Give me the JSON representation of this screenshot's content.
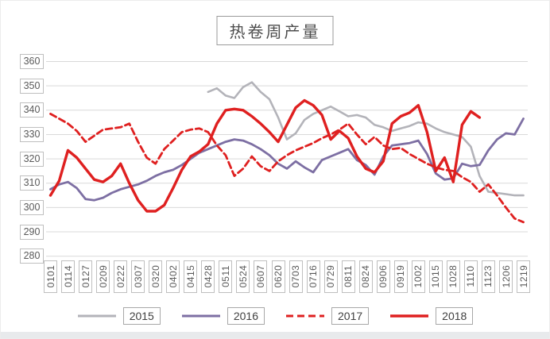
{
  "chart_data": {
    "type": "line",
    "title": "热卷周产量",
    "grid": true,
    "legend_position": "bottom",
    "n_points": 55,
    "x_axis": {
      "note_labels_every_2nd_point": true,
      "labels": [
        "0101",
        "0114",
        "0127",
        "0209",
        "0222",
        "0307",
        "0320",
        "0402",
        "0415",
        "0428",
        "0511",
        "0524",
        "0607",
        "0620",
        "0703",
        "0716",
        "0729",
        "0811",
        "0824",
        "0906",
        "0919",
        "1002",
        "1015",
        "1028",
        "1110",
        "1123",
        "1206",
        "1219"
      ]
    },
    "y_axis": {
      "min": 280,
      "max": 360,
      "step": 10,
      "ticks": [
        360,
        350,
        340,
        330,
        320,
        310,
        300,
        290,
        280
      ]
    },
    "colors": {
      "grid": "#d9d9d9",
      "tick_text": "#595959",
      "tick_box_border": "#bfbfbf"
    },
    "series": [
      {
        "name": "2015",
        "color": "#b3b3b9",
        "dash": "",
        "width": 2.6,
        "values": [
          null,
          null,
          null,
          null,
          null,
          null,
          null,
          null,
          null,
          null,
          null,
          null,
          null,
          null,
          null,
          null,
          null,
          null,
          347.5,
          349,
          346,
          345,
          349.5,
          351.5,
          347.5,
          344.5,
          337,
          328,
          330.5,
          336,
          338.5,
          340,
          341.5,
          339.5,
          337.5,
          338,
          337,
          334,
          333,
          331.5,
          332.5,
          333.5,
          335,
          334.5,
          332.5,
          331,
          330,
          329,
          325,
          313,
          306.5,
          306,
          305.5,
          305,
          305
        ]
      },
      {
        "name": "2016",
        "color": "#7d6fa3",
        "dash": "",
        "width": 2.8,
        "values": [
          307.5,
          309.5,
          310.5,
          308,
          303.5,
          303,
          304,
          306,
          307.5,
          308.5,
          309.5,
          311,
          313,
          314.5,
          315.5,
          317.5,
          320,
          322.5,
          324,
          325.5,
          327,
          328,
          327.5,
          326,
          324,
          321.5,
          318,
          316,
          319,
          316.5,
          314.5,
          319.5,
          321,
          322.5,
          324,
          319.5,
          317.5,
          313.5,
          321,
          325.5,
          326,
          326.5,
          327.5,
          322,
          314,
          311.5,
          312,
          318,
          317,
          317.5,
          323.5,
          328,
          330.5,
          330,
          336.5
        ]
      },
      {
        "name": "2017",
        "color": "#df2020",
        "dash": "8 4.5",
        "width": 2.8,
        "values": [
          338.5,
          336.5,
          334.5,
          331.5,
          327,
          329.5,
          332,
          332.5,
          333,
          334.5,
          327,
          320.5,
          318,
          324,
          327.5,
          331,
          332,
          332.5,
          331,
          325.5,
          321.5,
          313,
          316,
          321,
          317,
          315,
          319,
          321.5,
          323.5,
          325,
          326.5,
          328.5,
          330,
          332,
          334.5,
          330,
          326,
          329,
          325.5,
          324,
          324.5,
          322,
          320,
          318,
          316.5,
          315.5,
          315,
          312.5,
          310.5,
          306.5,
          309.5,
          305,
          300,
          295.5,
          294
        ]
      },
      {
        "name": "2018",
        "color": "#df2020",
        "dash": "",
        "width": 3.4,
        "values": [
          305,
          311,
          323.5,
          320.5,
          316,
          311.5,
          310.5,
          313,
          318,
          310,
          303,
          298.5,
          298.5,
          301,
          308,
          315.5,
          321,
          323,
          326,
          334.5,
          340,
          340.5,
          340,
          337.5,
          334.5,
          331,
          327,
          334,
          341,
          344,
          342,
          338,
          328,
          331.5,
          328.5,
          321,
          316,
          314.5,
          319,
          334.5,
          337.5,
          339,
          342,
          331,
          315,
          320.5,
          310.5,
          334,
          339.5,
          337,
          null,
          null,
          null,
          null,
          null
        ]
      }
    ],
    "legend": [
      "2015",
      "2016",
      "2017",
      "2018"
    ]
  }
}
